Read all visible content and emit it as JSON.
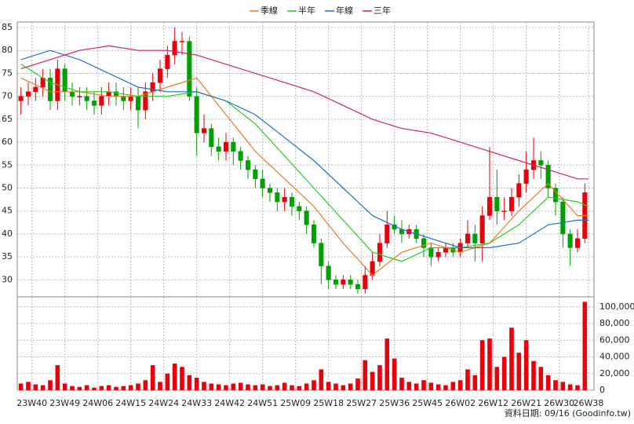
{
  "chart_data": {
    "type": "candlestick",
    "legend_position": "top",
    "up_color": "#e8000b",
    "down_color": "#00a000",
    "x": [
      0,
      2,
      4,
      6,
      8,
      10,
      12,
      14,
      16,
      18,
      20,
      22,
      24,
      26,
      28,
      30,
      32,
      34,
      36,
      38,
      40,
      42,
      44,
      46,
      48,
      50,
      52,
      54,
      56,
      58,
      60,
      62,
      64,
      66,
      68,
      70,
      72,
      74,
      76,
      78,
      80,
      82,
      84,
      86,
      88,
      90,
      92,
      94,
      96,
      98,
      100,
      102,
      104,
      106,
      108,
      110,
      112,
      114,
      116,
      118,
      120,
      122,
      124,
      126,
      128,
      130,
      132,
      134,
      136,
      138,
      140,
      142,
      144,
      146,
      148,
      150,
      152,
      154
    ],
    "open": [
      69,
      70,
      71,
      72,
      74,
      69,
      76,
      71,
      70,
      70,
      69,
      68,
      70,
      71,
      70,
      69,
      70,
      67,
      71,
      73,
      76,
      79,
      82,
      82,
      70,
      62,
      63,
      59,
      58,
      60,
      58,
      56,
      54,
      52,
      50,
      49,
      47,
      48,
      46,
      45,
      42,
      38,
      33,
      30,
      29,
      30,
      29,
      28,
      31,
      34,
      38,
      42,
      41,
      40,
      41,
      39,
      37,
      35,
      36,
      37,
      36,
      38,
      40,
      38,
      44,
      48,
      45,
      45,
      48,
      51,
      54,
      56,
      55,
      50,
      47,
      40,
      37,
      39
    ],
    "high": [
      72,
      73,
      74,
      76,
      76,
      78,
      77,
      73,
      72,
      72,
      71,
      72,
      73,
      73,
      72,
      72,
      72,
      73,
      75,
      78,
      81,
      85,
      84,
      83,
      72,
      66,
      64,
      61,
      62,
      61,
      59,
      57,
      55,
      54,
      51,
      50,
      50,
      49,
      47,
      46,
      43,
      39,
      34,
      31,
      31,
      31,
      30,
      33,
      36,
      40,
      45,
      44,
      43,
      42,
      42,
      40,
      38,
      37,
      38,
      38,
      39,
      43,
      42,
      46,
      59,
      54,
      48,
      50,
      53,
      58,
      61,
      58,
      56,
      51,
      48,
      41,
      41,
      51
    ],
    "low": [
      66,
      68,
      69,
      70,
      67,
      67,
      69,
      68,
      68,
      67,
      66,
      66,
      68,
      68,
      67,
      67,
      63,
      65,
      69,
      71,
      74,
      77,
      79,
      69,
      57,
      60,
      57,
      56,
      56,
      55,
      54,
      52,
      50,
      48,
      47,
      45,
      45,
      44,
      43,
      40,
      37,
      29,
      28,
      28,
      28,
      28,
      27,
      27,
      30,
      33,
      37,
      40,
      38,
      39,
      38,
      35,
      33,
      34,
      35,
      35,
      35,
      37,
      34,
      34,
      43,
      42,
      43,
      44,
      46,
      49,
      52,
      52,
      48,
      44,
      37,
      33,
      36,
      38
    ],
    "close": [
      70,
      71,
      72,
      74,
      69,
      76,
      71,
      70,
      70,
      69,
      68,
      70,
      71,
      70,
      69,
      70,
      67,
      71,
      73,
      76,
      79,
      82,
      82,
      70,
      62,
      63,
      59,
      58,
      60,
      58,
      56,
      54,
      52,
      50,
      49,
      47,
      48,
      46,
      45,
      42,
      38,
      33,
      30,
      29,
      30,
      29,
      28,
      31,
      34,
      38,
      42,
      41,
      40,
      41,
      39,
      37,
      35,
      36,
      37,
      36,
      38,
      40,
      38,
      44,
      48,
      45,
      45,
      48,
      51,
      54,
      56,
      55,
      50,
      47,
      40,
      37,
      39,
      49
    ],
    "xlim": [
      -1,
      156.5
    ],
    "xticks": [
      {
        "value": 3,
        "label": "23W40"
      },
      {
        "value": 12,
        "label": "23W49"
      },
      {
        "value": 21,
        "label": "24W06"
      },
      {
        "value": 30,
        "label": "24W15"
      },
      {
        "value": 39,
        "label": "24W24"
      },
      {
        "value": 48,
        "label": "24W33"
      },
      {
        "value": 57,
        "label": "24W42"
      },
      {
        "value": 66,
        "label": "24W51"
      },
      {
        "value": 75,
        "label": "25W09"
      },
      {
        "value": 84,
        "label": "25W18"
      },
      {
        "value": 93,
        "label": "25W27"
      },
      {
        "value": 102,
        "label": "25W36"
      },
      {
        "value": 111,
        "label": "25W45"
      },
      {
        "value": 120,
        "label": "26W02"
      },
      {
        "value": 129,
        "label": "26W12"
      },
      {
        "value": 138,
        "label": "26W21"
      },
      {
        "value": 147,
        "label": "26W30"
      },
      {
        "value": 155,
        "label": "26W38"
      }
    ],
    "ylim": [
      26.3,
      86.2
    ],
    "yticks": [
      30,
      35,
      40,
      45,
      50,
      55,
      60,
      65,
      70,
      75,
      80,
      85
    ],
    "grid": true,
    "series": [
      {
        "name": "季線",
        "color": "#f07820",
        "x": [
          0,
          8,
          16,
          24,
          32,
          40,
          48,
          56,
          64,
          72,
          80,
          88,
          96,
          104,
          112,
          120,
          128,
          136,
          144,
          152,
          155
        ],
        "values": [
          74,
          71,
          71,
          70,
          70,
          72,
          74,
          66,
          58,
          52,
          46,
          38,
          31,
          36,
          38,
          36,
          38,
          45,
          51,
          44,
          44
        ]
      },
      {
        "name": "半年",
        "color": "#20d020",
        "x": [
          0,
          8,
          16,
          24,
          32,
          40,
          48,
          56,
          64,
          72,
          80,
          88,
          96,
          104,
          112,
          120,
          128,
          136,
          144,
          152,
          155
        ],
        "values": [
          77,
          73,
          71,
          71,
          70,
          70,
          71,
          69,
          64,
          57,
          50,
          43,
          36,
          34,
          37,
          37,
          38,
          42,
          48,
          47,
          46
        ]
      },
      {
        "name": "年線",
        "color": "#1f6fd0",
        "x": [
          0,
          8,
          16,
          24,
          32,
          40,
          48,
          56,
          64,
          72,
          80,
          88,
          96,
          104,
          112,
          120,
          128,
          136,
          144,
          152,
          155
        ],
        "values": [
          78,
          80,
          78,
          75,
          72,
          71,
          71,
          69,
          66,
          61,
          56,
          50,
          44,
          41,
          39,
          37,
          37,
          38,
          42,
          43,
          43
        ]
      },
      {
        "name": "三年",
        "color": "#d0206a",
        "x": [
          0,
          8,
          16,
          24,
          32,
          40,
          48,
          56,
          64,
          72,
          80,
          88,
          96,
          104,
          112,
          120,
          128,
          136,
          144,
          152,
          155
        ],
        "values": [
          76,
          78,
          80,
          81,
          80,
          80,
          79,
          77,
          75,
          73,
          71,
          68,
          65,
          63,
          62,
          60,
          58,
          56,
          54,
          52,
          52
        ]
      }
    ],
    "volume": {
      "color": "#e8000b",
      "values": [
        8000,
        10000,
        7000,
        6000,
        12000,
        30000,
        8000,
        5000,
        4000,
        6000,
        3000,
        5000,
        6000,
        4000,
        5000,
        6000,
        8000,
        12000,
        30000,
        10000,
        20000,
        32000,
        28000,
        18000,
        15000,
        10000,
        8000,
        7000,
        6000,
        8000,
        9000,
        7000,
        6000,
        7000,
        5000,
        6000,
        9000,
        6000,
        5000,
        8000,
        12000,
        25000,
        10000,
        8000,
        6000,
        8000,
        14000,
        36000,
        22000,
        30000,
        62000,
        38000,
        15000,
        10000,
        8000,
        12000,
        9000,
        7000,
        6000,
        10000,
        12000,
        25000,
        18000,
        60000,
        62000,
        28000,
        40000,
        75000,
        45000,
        60000,
        35000,
        28000,
        18000,
        12000,
        10000,
        7000,
        6000,
        106000
      ],
      "ylim": [
        0,
        112000
      ],
      "yticks": [
        0,
        {
          "value": 20000,
          "label": "20,000"
        },
        {
          "value": 40000,
          "label": "40,000"
        },
        {
          "value": 60000,
          "label": "60,000"
        },
        {
          "value": 80000,
          "label": "80,000"
        },
        {
          "value": 100000,
          "label": "100,000"
        }
      ]
    },
    "footer": "資料日期: 09/16  (Goodinfo.tw)"
  }
}
